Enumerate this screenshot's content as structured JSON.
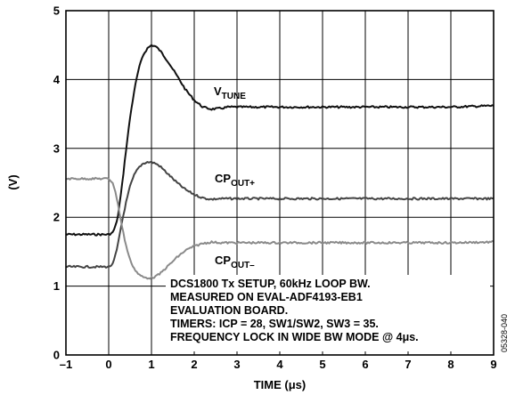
{
  "chart_data": {
    "type": "line",
    "xlabel": "TIME (μs)",
    "ylabel": "(V)",
    "xlim": [
      -1,
      9
    ],
    "ylim": [
      0,
      5
    ],
    "x_ticks": [
      "–1",
      "0",
      "1",
      "2",
      "3",
      "4",
      "5",
      "6",
      "7",
      "8",
      "9"
    ],
    "y_ticks": [
      "0",
      "1",
      "2",
      "3",
      "4",
      "5"
    ],
    "grid": true,
    "series": [
      {
        "name": "V",
        "name_sub": "TUNE",
        "color": "#111111",
        "x": [
          -1,
          0,
          0.1,
          0.2,
          0.3,
          0.4,
          0.5,
          0.6,
          0.7,
          0.8,
          0.9,
          1.0,
          1.1,
          1.2,
          1.4,
          1.6,
          1.8,
          2.0,
          2.2,
          2.4,
          2.6,
          2.8,
          3.0,
          4,
          5,
          6,
          7,
          8,
          9
        ],
        "y": [
          1.75,
          1.75,
          1.78,
          1.95,
          2.4,
          2.95,
          3.45,
          3.85,
          4.15,
          4.35,
          4.45,
          4.5,
          4.48,
          4.42,
          4.25,
          4.05,
          3.85,
          3.7,
          3.6,
          3.57,
          3.58,
          3.6,
          3.6,
          3.6,
          3.6,
          3.6,
          3.6,
          3.6,
          3.62
        ]
      },
      {
        "name": "CP",
        "name_sub": "OUT+",
        "color": "#444444",
        "x": [
          -1,
          0,
          0.1,
          0.2,
          0.3,
          0.4,
          0.5,
          0.6,
          0.7,
          0.8,
          0.9,
          1.0,
          1.1,
          1.2,
          1.4,
          1.6,
          1.8,
          2.0,
          2.2,
          2.4,
          2.6,
          3.0,
          4,
          5,
          6,
          7,
          8,
          9
        ],
        "y": [
          1.28,
          1.28,
          1.32,
          1.55,
          1.9,
          2.2,
          2.45,
          2.62,
          2.72,
          2.78,
          2.8,
          2.8,
          2.78,
          2.74,
          2.62,
          2.5,
          2.4,
          2.33,
          2.28,
          2.26,
          2.27,
          2.27,
          2.27,
          2.27,
          2.27,
          2.27,
          2.27,
          2.27
        ]
      },
      {
        "name": "CP",
        "name_sub": "OUT–",
        "color": "#8a8a8a",
        "x": [
          -1,
          0,
          0.1,
          0.2,
          0.3,
          0.4,
          0.5,
          0.6,
          0.7,
          0.8,
          0.9,
          1.0,
          1.1,
          1.2,
          1.4,
          1.6,
          1.8,
          2.0,
          2.2,
          2.4,
          2.6,
          3.0,
          4,
          5,
          6,
          7,
          8,
          9
        ],
        "y": [
          2.56,
          2.56,
          2.5,
          2.25,
          1.9,
          1.6,
          1.38,
          1.25,
          1.17,
          1.13,
          1.12,
          1.12,
          1.14,
          1.18,
          1.3,
          1.42,
          1.52,
          1.58,
          1.62,
          1.64,
          1.63,
          1.63,
          1.63,
          1.63,
          1.63,
          1.63,
          1.63,
          1.64
        ]
      }
    ],
    "annotation_lines": [
      "DCS1800 Tx SETUP, 60kHz LOOP BW.",
      "MEASURED ON EVAL-ADF4193-EB1",
      "EVALUATION BOARD.",
      "TIMERS: ICP = 28, SW1/SW2, SW3 = 35.",
      "FREQUENCY LOCK IN WIDE BW MODE @ 4μs."
    ],
    "figure_id": "05328-040"
  }
}
